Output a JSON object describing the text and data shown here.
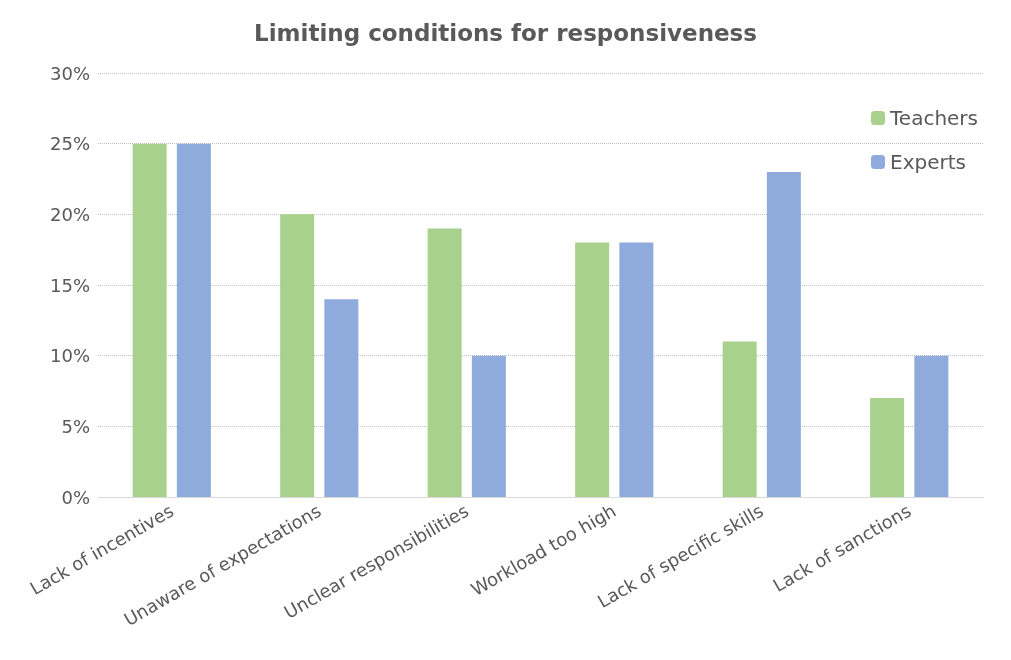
{
  "chart_data": {
    "type": "bar",
    "title": "Limiting conditions for responsiveness",
    "categories": [
      "Lack of incentives",
      "Unaware of expectations",
      "Unclear responsibilities",
      "Workload too high",
      "Lack of specific skills",
      "Lack of sanctions"
    ],
    "series": [
      {
        "name": "Teachers",
        "color": "#a9d18e",
        "values": [
          25,
          20,
          19,
          18,
          11,
          7
        ]
      },
      {
        "name": "Experts",
        "color": "#8faadc",
        "values": [
          25,
          14,
          10,
          18,
          23,
          10
        ]
      }
    ],
    "ylim": [
      0,
      30
    ],
    "yticks": [
      {
        "value": 0,
        "label": "0%"
      },
      {
        "value": 5,
        "label": "5%"
      },
      {
        "value": 10,
        "label": "10%"
      },
      {
        "value": 15,
        "label": "15%"
      },
      {
        "value": 20,
        "label": "20%"
      },
      {
        "value": 25,
        "label": "25%"
      },
      {
        "value": 30,
        "label": "30%"
      }
    ],
    "grid": "y",
    "legend": "top right"
  }
}
